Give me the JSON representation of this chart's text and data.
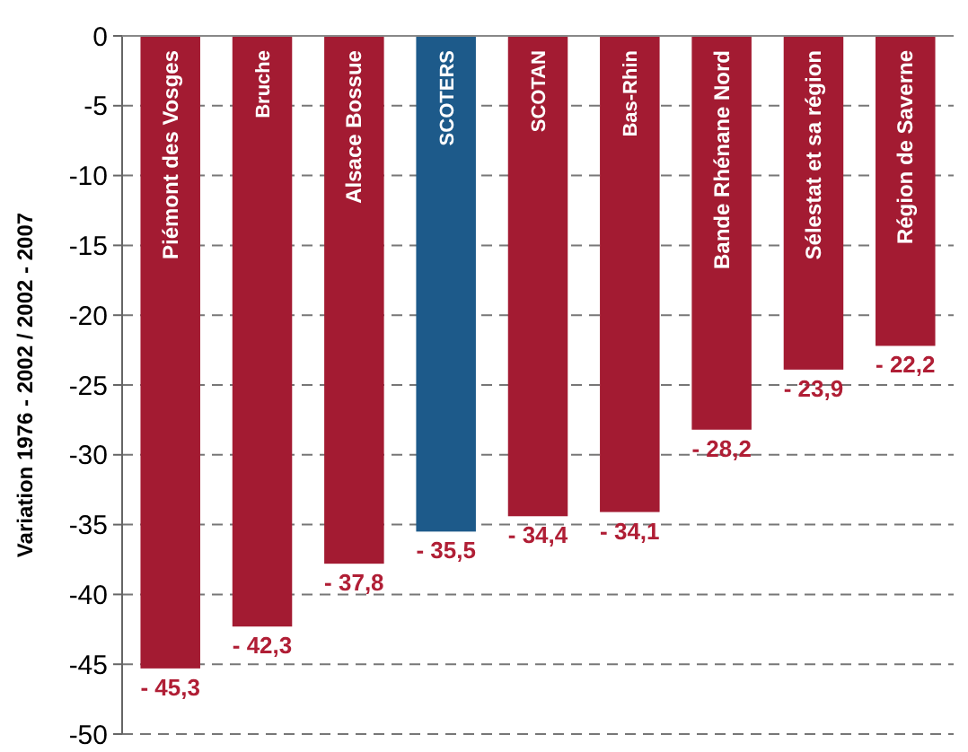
{
  "chart_data": {
    "type": "bar",
    "ylabel": "Variation 1976 - 2002 / 2002 - 2007",
    "categories": [
      "Piémont des Vosges",
      "Bruche",
      "Alsace Bossue",
      "SCOTERS",
      "SCOTAN",
      "Bas-Rhin",
      "Bande Rhénane Nord",
      "Sélestat et sa région",
      "Région de Saverne"
    ],
    "values": [
      -45.3,
      -42.3,
      -37.8,
      -35.5,
      -34.4,
      -34.1,
      -28.2,
      -23.9,
      -22.2
    ],
    "colors": [
      "#a31b32",
      "#a31b32",
      "#a31b32",
      "#1d5a8a",
      "#a31b32",
      "#a31b32",
      "#a31b32",
      "#a31b32",
      "#a31b32"
    ],
    "value_labels": [
      "- 45,3",
      "- 42,3",
      "- 37,8",
      "- 35,5",
      "- 34,4",
      "- 34,1",
      "- 28,2",
      "- 23,9",
      "- 22,2"
    ],
    "ylim": [
      -50,
      0
    ],
    "yticks": [
      0,
      -5,
      -10,
      -15,
      -20,
      -25,
      -30,
      -35,
      -40,
      -45,
      -50
    ],
    "grid": "y"
  }
}
